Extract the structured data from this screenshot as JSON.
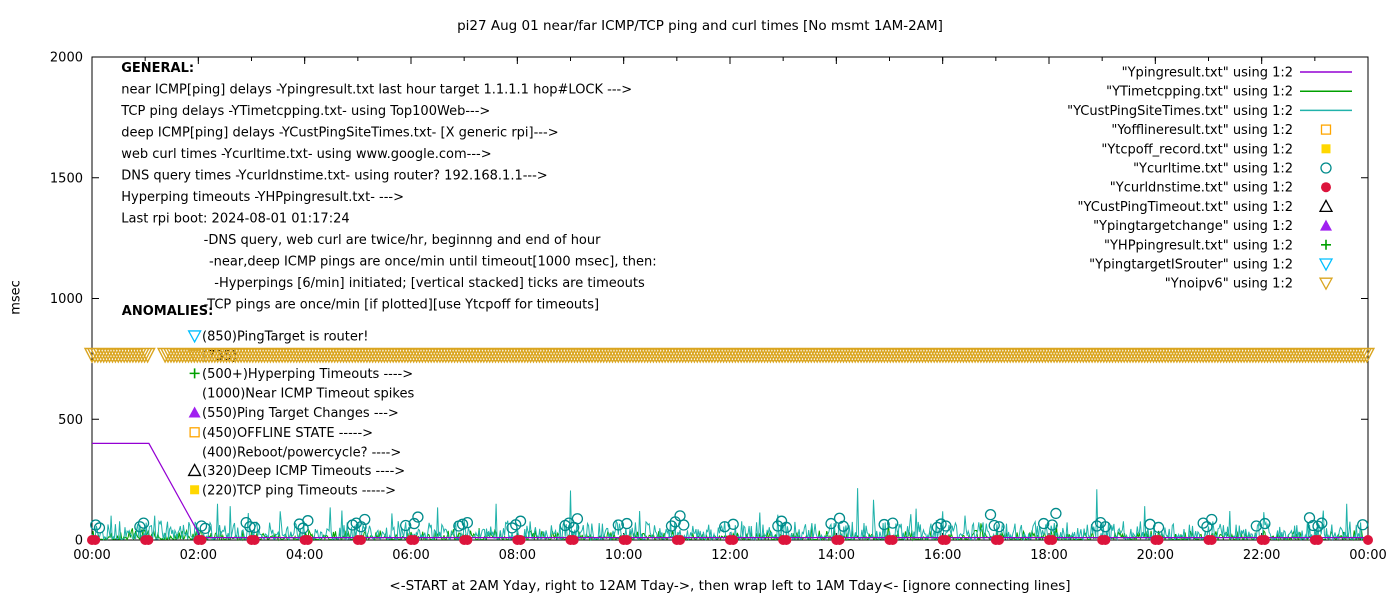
{
  "title": "pi27 Aug 01  near/far ICMP/TCP ping and curl times [No msmt 1AM-2AM]",
  "ylabel": "msec",
  "xlabel_note": "<-START at 2AM Yday, right to 12AM Tday->, then wrap left to 1AM Tday<- [ignore connecting lines]",
  "chart_data": {
    "type": "line",
    "grid": false,
    "legend_position": "top-right",
    "x_axis": {
      "range": [
        0,
        24
      ],
      "tick_step_hours": 2,
      "tick_labels": [
        "00:00",
        "02:00",
        "04:00",
        "06:00",
        "08:00",
        "10:00",
        "12:00",
        "14:00",
        "16:00",
        "18:00",
        "20:00",
        "22:00",
        "00:00"
      ]
    },
    "y_axis": {
      "range": [
        0,
        2000
      ],
      "tick_step": 500,
      "tick_labels": [
        "0",
        "500",
        "1000",
        "1500",
        "2000"
      ]
    },
    "legend": [
      {
        "label": "\"Ypingresult.txt\" using 1:2",
        "symbol": "line",
        "color": "#9400d3"
      },
      {
        "label": "\"YTimetcpping.txt\" using 1:2",
        "symbol": "line",
        "color": "#00a000"
      },
      {
        "label": "\"YCustPingSiteTimes.txt\" using 1:2",
        "symbol": "line",
        "color": "#20b2aa"
      },
      {
        "label": "\"Yofflineresult.txt\" using 1:2",
        "symbol": "square-open",
        "color": "#ffa500"
      },
      {
        "label": "\"Ytcpoff_record.txt\" using 1:2",
        "symbol": "square-filled",
        "color": "#ffd700"
      },
      {
        "label": "\"Ycurltime.txt\" using 1:2",
        "symbol": "circle-open",
        "color": "#008b8b"
      },
      {
        "label": "\"Ycurldnstime.txt\" using 1:2",
        "symbol": "circle-filled",
        "color": "#dc143c"
      },
      {
        "label": "\"YCustPingTimeout.txt\" using 1:2",
        "symbol": "triangle-up-open",
        "color": "#000000"
      },
      {
        "label": "\"Ypingtargetchange\" using 1:2",
        "symbol": "triangle-up-filled",
        "color": "#a020f0"
      },
      {
        "label": "\"YHPpingresult.txt\" using 1:2",
        "symbol": "plus",
        "color": "#00a000"
      },
      {
        "label": "\"YpingtargetISrouter\" using 1:2",
        "symbol": "triangle-down-open",
        "color": "#00bfff"
      },
      {
        "label": "\"Ynoipv6\" using 1:2",
        "symbol": "triangle-down-open",
        "color": "#daa520"
      }
    ],
    "series": {
      "ping_near_line": {
        "name": "near ICMP ping delay (Ypingresult.txt)",
        "color": "#9400d3",
        "points": [
          [
            0,
            400
          ],
          [
            1.07,
            400
          ],
          [
            2.05,
            10
          ],
          [
            24,
            10
          ]
        ]
      },
      "tcp_ping_line": {
        "name": "TCP ping delay (YTimetcpping.txt)",
        "color": "#00a000",
        "noise": {
          "seed": 7,
          "step": 0.02,
          "base": 2,
          "amp": 38,
          "pow": 3.0,
          "spike_chance": 0.02,
          "spike_amp": 50
        }
      },
      "deep_ping_line": {
        "name": "deep ICMP ping delay (YCustPingSiteTimes.txt)",
        "color": "#20b2aa",
        "noise": {
          "seed": 13,
          "step": 0.02,
          "base": 3,
          "amp": 75,
          "pow": 2.2,
          "spike_chance": 0.03,
          "spike_amp": 120
        },
        "spikes": [
          [
            2.35,
            150
          ],
          [
            2.6,
            140
          ],
          [
            4.7,
            122
          ],
          [
            6.5,
            135
          ],
          [
            9.0,
            205
          ],
          [
            10.3,
            120
          ],
          [
            12.9,
            105
          ],
          [
            14.4,
            215
          ],
          [
            15.5,
            130
          ],
          [
            18.9,
            210
          ],
          [
            19.8,
            140
          ],
          [
            21.4,
            120
          ],
          [
            23.6,
            150
          ]
        ]
      },
      "curl_circles": {
        "name": "web curl times (Ycurltime.txt)",
        "color": "#008b8b",
        "points": [
          [
            0.07,
            62
          ],
          [
            0.14,
            50
          ],
          [
            0.9,
            55
          ],
          [
            0.97,
            70
          ],
          [
            2.06,
            58
          ],
          [
            2.13,
            48
          ],
          [
            2.9,
            72
          ],
          [
            2.97,
            55
          ],
          [
            3.06,
            52
          ],
          [
            3.9,
            66
          ],
          [
            3.97,
            49
          ],
          [
            4.06,
            80
          ],
          [
            4.9,
            62
          ],
          [
            4.97,
            70
          ],
          [
            5.06,
            55
          ],
          [
            5.13,
            85
          ],
          [
            5.9,
            60
          ],
          [
            6.06,
            68
          ],
          [
            6.13,
            95
          ],
          [
            6.9,
            58
          ],
          [
            6.97,
            65
          ],
          [
            7.06,
            72
          ],
          [
            7.9,
            50
          ],
          [
            7.97,
            63
          ],
          [
            8.06,
            78
          ],
          [
            8.9,
            60
          ],
          [
            8.97,
            70
          ],
          [
            9.06,
            52
          ],
          [
            9.13,
            88
          ],
          [
            9.9,
            62
          ],
          [
            10.06,
            68
          ],
          [
            10.9,
            58
          ],
          [
            10.97,
            75
          ],
          [
            11.06,
            100
          ],
          [
            11.13,
            62
          ],
          [
            11.9,
            55
          ],
          [
            12.06,
            65
          ],
          [
            12.9,
            58
          ],
          [
            12.97,
            78
          ],
          [
            13.06,
            52
          ],
          [
            13.9,
            68
          ],
          [
            14.06,
            90
          ],
          [
            14.13,
            57
          ],
          [
            14.9,
            64
          ],
          [
            15.06,
            70
          ],
          [
            15.9,
            52
          ],
          [
            15.97,
            66
          ],
          [
            16.06,
            58
          ],
          [
            16.9,
            105
          ],
          [
            16.97,
            60
          ],
          [
            17.06,
            55
          ],
          [
            17.9,
            68
          ],
          [
            18.06,
            62
          ],
          [
            18.13,
            110
          ],
          [
            18.9,
            58
          ],
          [
            18.97,
            72
          ],
          [
            19.06,
            55
          ],
          [
            19.9,
            65
          ],
          [
            20.06,
            52
          ],
          [
            20.9,
            70
          ],
          [
            20.97,
            55
          ],
          [
            21.06,
            85
          ],
          [
            21.9,
            58
          ],
          [
            22.06,
            68
          ],
          [
            22.9,
            92
          ],
          [
            22.97,
            60
          ],
          [
            23.06,
            57
          ],
          [
            23.13,
            70
          ],
          [
            23.9,
            63
          ]
        ]
      },
      "dns_dots": {
        "name": "DNS query times (Ycurldnstime.txt), every hour at ~0 msec",
        "color": "#dc143c",
        "y": 0,
        "offsets": [
          0,
          0.06
        ]
      },
      "noipv6_band": {
        "name": "Ynoipv6 dense down-triangle band at ~765 msec",
        "color": "#daa520",
        "y": 765,
        "half_height_msec": 28,
        "x_range": [
          0,
          24
        ],
        "gaps": [
          [
            1.05,
            1.33
          ]
        ],
        "tri_spacing": 0.055
      }
    },
    "annotations": {
      "general": {
        "lines": [
          {
            "x": 0.55,
            "y": 1938,
            "bold": true,
            "text": "GENERAL:"
          },
          {
            "x": 0.55,
            "y": 1849,
            "text": "near ICMP[ping] delays -Ypingresult.txt last hour target 1.1.1.1 hop#LOCK --->"
          },
          {
            "x": 0.55,
            "y": 1760,
            "text": "TCP ping delays -YTimetcpping.txt- using Top100Web--->"
          },
          {
            "x": 0.55,
            "y": 1671,
            "text": "deep ICMP[ping] delays -YCustPingSiteTimes.txt- [X generic rpi]--->"
          },
          {
            "x": 0.55,
            "y": 1582,
            "text": "web curl times -Ycurltime.txt- using www.google.com--->"
          },
          {
            "x": 0.55,
            "y": 1493,
            "text": "DNS query times -Ycurldnstime.txt- using router? 192.168.1.1--->"
          },
          {
            "x": 0.55,
            "y": 1404,
            "text": "Hyperping timeouts -YHPpingresult.txt- --->"
          },
          {
            "x": 0.55,
            "y": 1315,
            "text": "Last rpi boot: 2024-08-01 01:17:24"
          },
          {
            "x": 2.1,
            "y": 1226,
            "text": "-DNS query, web curl are twice/hr, beginnng and end of hour"
          },
          {
            "x": 2.2,
            "y": 1137,
            "text": "-near,deep ICMP pings are once/min until timeout[1000 msec], then:"
          },
          {
            "x": 2.3,
            "y": 1048,
            "text": "-Hyperpings [6/min] initiated; [vertical stacked] ticks are timeouts"
          },
          {
            "x": 2.1,
            "y": 959,
            "text": "-TCP pings are once/min [if plotted][use Ytcpoff for timeouts]"
          }
        ]
      },
      "anomalies": {
        "header": "ANOMALIES:",
        "header_x": 0.56,
        "header_y": 931,
        "marker_x": 1.93,
        "text_x": 2.07,
        "items": [
          {
            "marker": "triangle-down-open",
            "color": "#00bfff",
            "y": 845,
            "text": "(850)PingTarget is router!"
          },
          {
            "marker": "triangle-down-open",
            "color": "#daa520",
            "y": 765,
            "text": "(735)"
          },
          {
            "marker": "plus",
            "color": "#00a000",
            "y": 690,
            "text": "(500+)Hyperping Timeouts ---->"
          },
          {
            "y": 608,
            "text": "(1000)Near ICMP Timeout spikes"
          },
          {
            "marker": "triangle-up-filled",
            "color": "#a020f0",
            "y": 528,
            "text": "(550)Ping Target Changes --->"
          },
          {
            "marker": "square-open",
            "color": "#ffa500",
            "y": 446,
            "text": "(450)OFFLINE STATE ----->"
          },
          {
            "y": 365,
            "text": "(400)Reboot/powercycle? ---->"
          },
          {
            "marker": "triangle-up-open",
            "color": "#000000",
            "y": 288,
            "text": "(320)Deep ICMP Timeouts ---->"
          },
          {
            "marker": "square-filled",
            "color": "#ffd700",
            "y": 208,
            "text": "(220)TCP ping Timeouts ----->"
          }
        ]
      }
    }
  }
}
